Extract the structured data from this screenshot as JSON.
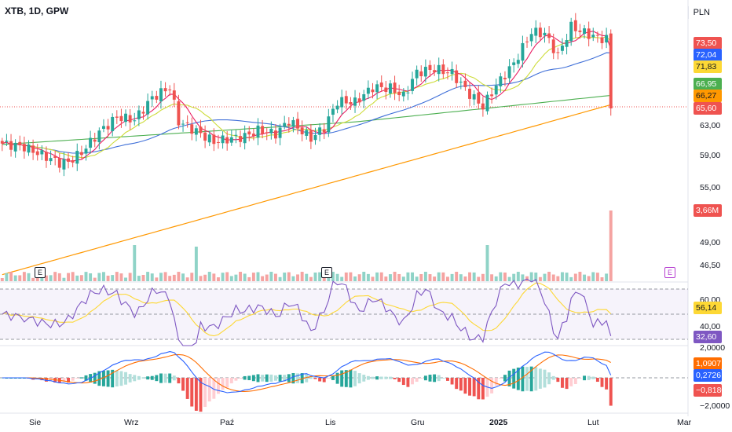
{
  "header": {
    "symbol": "XTB, 1D, GPW",
    "currency": "PLN"
  },
  "colors": {
    "up": "#26a69a",
    "down": "#ef5350",
    "ma10": "#e91e63",
    "ma20": "#cddc39",
    "ma50": "#3f6fd8",
    "ma100": "#4caf50",
    "ma200": "#ff9800",
    "rsi": "#7e57c2",
    "rsi_ma": "#fdd835",
    "macd": "#2962ff",
    "signal": "#ff6d00"
  },
  "price_axis": {
    "labels": [
      "63,00",
      "59,00",
      "55,00",
      "49,00",
      "46,50"
    ],
    "tags": [
      {
        "text": "73,50",
        "color": "#ef5350"
      },
      {
        "text": "72,04",
        "color": "#2962ff"
      },
      {
        "text": "71,83",
        "color": "#fdd835",
        "text_color": "#131722"
      },
      {
        "text": "66,95",
        "color": "#4caf50"
      },
      {
        "text": "66,27",
        "color": "#ff9800",
        "text_color": "#131722"
      },
      {
        "text": "65,60",
        "color": "#ef5350"
      },
      {
        "text": "3,66M",
        "color": "#ef5350"
      }
    ]
  },
  "rsi_axis": {
    "labels": [
      "60,00",
      "40,00"
    ],
    "tags": [
      {
        "text": "56,14",
        "color": "#fdd835",
        "text_color": "#131722"
      },
      {
        "text": "32,60",
        "color": "#7e57c2"
      }
    ]
  },
  "macd_axis": {
    "labels": [
      "2,0000",
      "−2,0000"
    ],
    "tags": [
      {
        "text": "1,0907",
        "color": "#ff6d00"
      },
      {
        "text": "0,2726",
        "color": "#2962ff"
      },
      {
        "text": "−0,8180",
        "color": "#ef5350"
      }
    ]
  },
  "time_axis": [
    {
      "text": "Sie",
      "bold": false
    },
    {
      "text": "Wrz",
      "bold": false
    },
    {
      "text": "Paź",
      "bold": false
    },
    {
      "text": "Lis",
      "bold": false
    },
    {
      "text": "Gru",
      "bold": false
    },
    {
      "text": "2025",
      "bold": true
    },
    {
      "text": "Lut",
      "bold": false
    },
    {
      "text": "Mar",
      "bold": false
    }
  ],
  "earnings_marks": [
    "E",
    "E",
    "E"
  ],
  "chart_data": {
    "type": "candlestick",
    "price_anchors": [
      [
        0,
        61.6
      ],
      [
        5,
        61.2
      ],
      [
        10,
        60.1
      ],
      [
        13,
        59.4
      ],
      [
        15,
        59.5
      ],
      [
        18,
        60.6
      ],
      [
        22,
        62.9
      ],
      [
        26,
        64.6
      ],
      [
        30,
        64.3
      ],
      [
        34,
        66.8
      ],
      [
        38,
        68.0
      ],
      [
        40,
        64.1
      ],
      [
        44,
        63.0
      ],
      [
        48,
        61.8
      ],
      [
        52,
        62.2
      ],
      [
        55,
        62.4
      ],
      [
        58,
        63.1
      ],
      [
        62,
        62.7
      ],
      [
        65,
        64.2
      ],
      [
        70,
        62.2
      ],
      [
        73,
        63.4
      ],
      [
        76,
        66.4
      ],
      [
        80,
        66.3
      ],
      [
        84,
        68.0
      ],
      [
        88,
        67.9
      ],
      [
        91,
        67.0
      ],
      [
        94,
        69.7
      ],
      [
        98,
        70.1
      ],
      [
        102,
        69.6
      ],
      [
        106,
        67.2
      ],
      [
        109,
        65.8
      ],
      [
        112,
        68.2
      ],
      [
        116,
        70.7
      ],
      [
        120,
        74.3
      ],
      [
        123,
        74.1
      ],
      [
        126,
        71.6
      ],
      [
        129,
        74.9
      ],
      [
        132,
        74.2
      ],
      [
        135,
        73.6
      ],
      [
        137,
        73.5
      ],
      [
        138,
        66.0
      ]
    ],
    "ma10_last": 72.04,
    "ma20_last": 71.83,
    "ma100_last": 66.95,
    "ma200_last": 66.27,
    "last_close": 65.6,
    "volume_last": "3,66M",
    "rsi_last": 32.6,
    "rsi_ma_last": 56.14,
    "rsi_levels": [
      70,
      50,
      30
    ],
    "macd_last": 0.2726,
    "signal_last": 1.0907,
    "histogram_last": -0.818
  }
}
